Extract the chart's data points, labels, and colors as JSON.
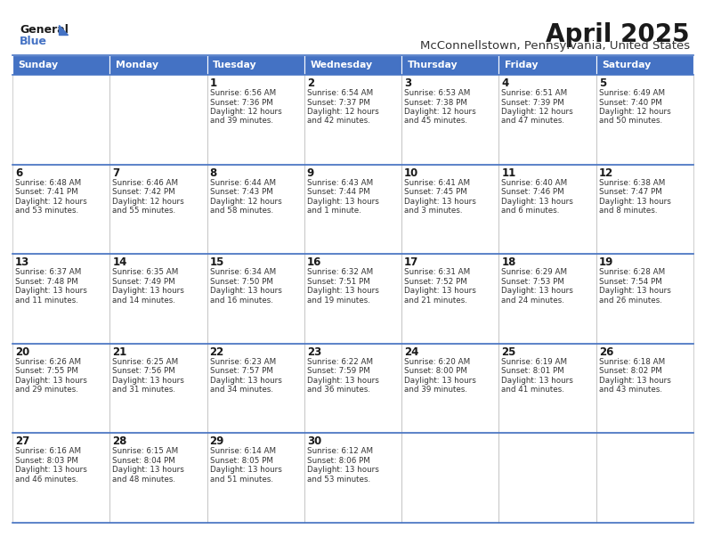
{
  "title": "April 2025",
  "subtitle": "McConnellstown, Pennsylvania, United States",
  "header_bg": "#4472C4",
  "header_text_color": "#FFFFFF",
  "cell_bg": "#FFFFFF",
  "border_color": "#AAAAAA",
  "row_sep_color": "#4472C4",
  "days_of_week": [
    "Sunday",
    "Monday",
    "Tuesday",
    "Wednesday",
    "Thursday",
    "Friday",
    "Saturday"
  ],
  "calendar": [
    [
      {
        "day": "",
        "sunrise": "",
        "sunset": "",
        "daylight": ""
      },
      {
        "day": "",
        "sunrise": "",
        "sunset": "",
        "daylight": ""
      },
      {
        "day": "1",
        "sunrise": "Sunrise: 6:56 AM",
        "sunset": "Sunset: 7:36 PM",
        "daylight": "Daylight: 12 hours\nand 39 minutes."
      },
      {
        "day": "2",
        "sunrise": "Sunrise: 6:54 AM",
        "sunset": "Sunset: 7:37 PM",
        "daylight": "Daylight: 12 hours\nand 42 minutes."
      },
      {
        "day": "3",
        "sunrise": "Sunrise: 6:53 AM",
        "sunset": "Sunset: 7:38 PM",
        "daylight": "Daylight: 12 hours\nand 45 minutes."
      },
      {
        "day": "4",
        "sunrise": "Sunrise: 6:51 AM",
        "sunset": "Sunset: 7:39 PM",
        "daylight": "Daylight: 12 hours\nand 47 minutes."
      },
      {
        "day": "5",
        "sunrise": "Sunrise: 6:49 AM",
        "sunset": "Sunset: 7:40 PM",
        "daylight": "Daylight: 12 hours\nand 50 minutes."
      }
    ],
    [
      {
        "day": "6",
        "sunrise": "Sunrise: 6:48 AM",
        "sunset": "Sunset: 7:41 PM",
        "daylight": "Daylight: 12 hours\nand 53 minutes."
      },
      {
        "day": "7",
        "sunrise": "Sunrise: 6:46 AM",
        "sunset": "Sunset: 7:42 PM",
        "daylight": "Daylight: 12 hours\nand 55 minutes."
      },
      {
        "day": "8",
        "sunrise": "Sunrise: 6:44 AM",
        "sunset": "Sunset: 7:43 PM",
        "daylight": "Daylight: 12 hours\nand 58 minutes."
      },
      {
        "day": "9",
        "sunrise": "Sunrise: 6:43 AM",
        "sunset": "Sunset: 7:44 PM",
        "daylight": "Daylight: 13 hours\nand 1 minute."
      },
      {
        "day": "10",
        "sunrise": "Sunrise: 6:41 AM",
        "sunset": "Sunset: 7:45 PM",
        "daylight": "Daylight: 13 hours\nand 3 minutes."
      },
      {
        "day": "11",
        "sunrise": "Sunrise: 6:40 AM",
        "sunset": "Sunset: 7:46 PM",
        "daylight": "Daylight: 13 hours\nand 6 minutes."
      },
      {
        "day": "12",
        "sunrise": "Sunrise: 6:38 AM",
        "sunset": "Sunset: 7:47 PM",
        "daylight": "Daylight: 13 hours\nand 8 minutes."
      }
    ],
    [
      {
        "day": "13",
        "sunrise": "Sunrise: 6:37 AM",
        "sunset": "Sunset: 7:48 PM",
        "daylight": "Daylight: 13 hours\nand 11 minutes."
      },
      {
        "day": "14",
        "sunrise": "Sunrise: 6:35 AM",
        "sunset": "Sunset: 7:49 PM",
        "daylight": "Daylight: 13 hours\nand 14 minutes."
      },
      {
        "day": "15",
        "sunrise": "Sunrise: 6:34 AM",
        "sunset": "Sunset: 7:50 PM",
        "daylight": "Daylight: 13 hours\nand 16 minutes."
      },
      {
        "day": "16",
        "sunrise": "Sunrise: 6:32 AM",
        "sunset": "Sunset: 7:51 PM",
        "daylight": "Daylight: 13 hours\nand 19 minutes."
      },
      {
        "day": "17",
        "sunrise": "Sunrise: 6:31 AM",
        "sunset": "Sunset: 7:52 PM",
        "daylight": "Daylight: 13 hours\nand 21 minutes."
      },
      {
        "day": "18",
        "sunrise": "Sunrise: 6:29 AM",
        "sunset": "Sunset: 7:53 PM",
        "daylight": "Daylight: 13 hours\nand 24 minutes."
      },
      {
        "day": "19",
        "sunrise": "Sunrise: 6:28 AM",
        "sunset": "Sunset: 7:54 PM",
        "daylight": "Daylight: 13 hours\nand 26 minutes."
      }
    ],
    [
      {
        "day": "20",
        "sunrise": "Sunrise: 6:26 AM",
        "sunset": "Sunset: 7:55 PM",
        "daylight": "Daylight: 13 hours\nand 29 minutes."
      },
      {
        "day": "21",
        "sunrise": "Sunrise: 6:25 AM",
        "sunset": "Sunset: 7:56 PM",
        "daylight": "Daylight: 13 hours\nand 31 minutes."
      },
      {
        "day": "22",
        "sunrise": "Sunrise: 6:23 AM",
        "sunset": "Sunset: 7:57 PM",
        "daylight": "Daylight: 13 hours\nand 34 minutes."
      },
      {
        "day": "23",
        "sunrise": "Sunrise: 6:22 AM",
        "sunset": "Sunset: 7:59 PM",
        "daylight": "Daylight: 13 hours\nand 36 minutes."
      },
      {
        "day": "24",
        "sunrise": "Sunrise: 6:20 AM",
        "sunset": "Sunset: 8:00 PM",
        "daylight": "Daylight: 13 hours\nand 39 minutes."
      },
      {
        "day": "25",
        "sunrise": "Sunrise: 6:19 AM",
        "sunset": "Sunset: 8:01 PM",
        "daylight": "Daylight: 13 hours\nand 41 minutes."
      },
      {
        "day": "26",
        "sunrise": "Sunrise: 6:18 AM",
        "sunset": "Sunset: 8:02 PM",
        "daylight": "Daylight: 13 hours\nand 43 minutes."
      }
    ],
    [
      {
        "day": "27",
        "sunrise": "Sunrise: 6:16 AM",
        "sunset": "Sunset: 8:03 PM",
        "daylight": "Daylight: 13 hours\nand 46 minutes."
      },
      {
        "day": "28",
        "sunrise": "Sunrise: 6:15 AM",
        "sunset": "Sunset: 8:04 PM",
        "daylight": "Daylight: 13 hours\nand 48 minutes."
      },
      {
        "day": "29",
        "sunrise": "Sunrise: 6:14 AM",
        "sunset": "Sunset: 8:05 PM",
        "daylight": "Daylight: 13 hours\nand 51 minutes."
      },
      {
        "day": "30",
        "sunrise": "Sunrise: 6:12 AM",
        "sunset": "Sunset: 8:06 PM",
        "daylight": "Daylight: 13 hours\nand 53 minutes."
      },
      {
        "day": "",
        "sunrise": "",
        "sunset": "",
        "daylight": ""
      },
      {
        "day": "",
        "sunrise": "",
        "sunset": "",
        "daylight": ""
      },
      {
        "day": "",
        "sunrise": "",
        "sunset": "",
        "daylight": ""
      }
    ]
  ],
  "fig_width": 7.92,
  "fig_height": 6.12,
  "dpi": 100
}
